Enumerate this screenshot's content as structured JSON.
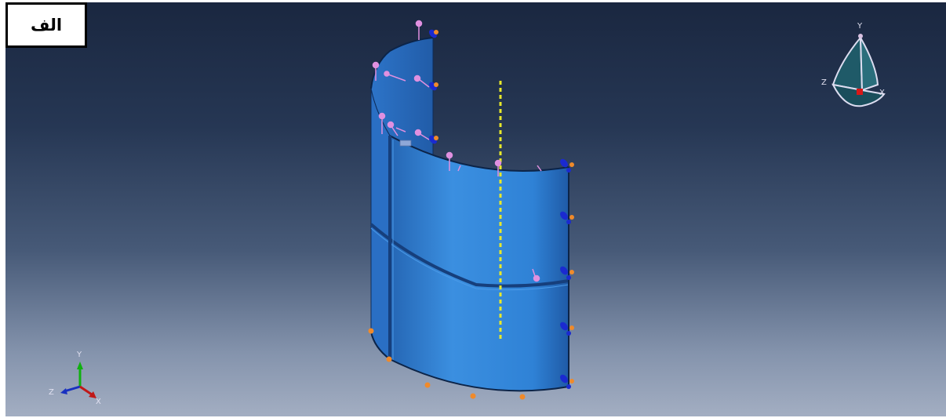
{
  "panel_label": "الف",
  "view_triad": {
    "x_label": "X",
    "y_label": "Y",
    "z_label": "Z"
  },
  "coord_triad": {
    "x_label": "X",
    "y_label": "Y",
    "z_label": "Z"
  },
  "colors": {
    "background_top": "#1a2740",
    "background_bottom": "#a3aec2",
    "shell_front": "#2f82d6",
    "shell_inner": "#2a6cc0",
    "axis_line": "#e8e82a",
    "load_arrow": "#e090e0",
    "bc_blue": "#1a2ad0",
    "bc_orange": "#f08a2a",
    "triad_x": "#c01818",
    "triad_y": "#10b010",
    "triad_z": "#1830c0"
  }
}
